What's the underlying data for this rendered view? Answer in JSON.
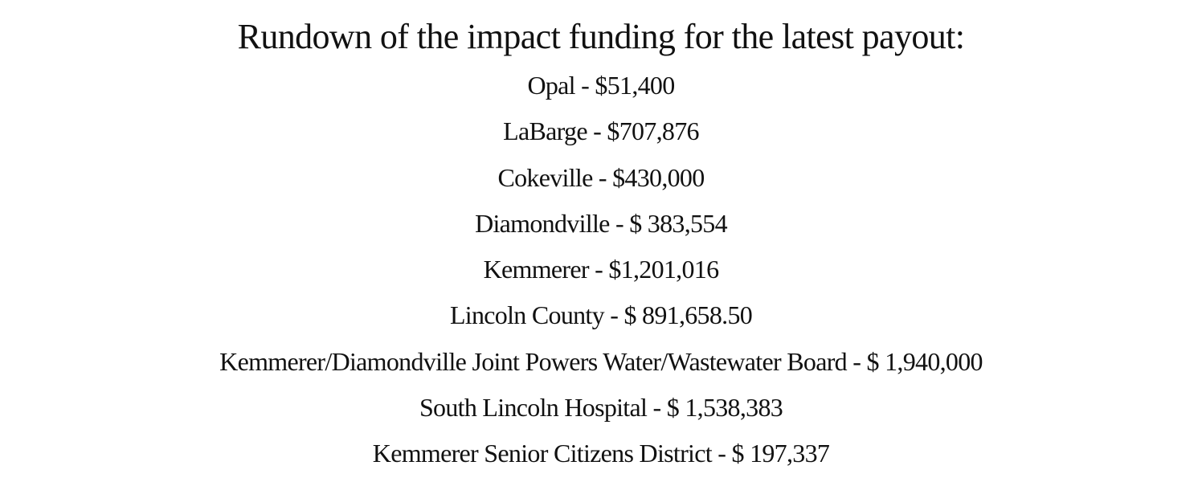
{
  "title": "Rundown of the impact funding for the latest payout:",
  "items": [
    "Opal - $51,400",
    "LaBarge - $707,876",
    "Cokeville - $430,000",
    "Diamondville - $ 383,554",
    "Kemmerer - $1,201,016",
    "Lincoln County - $ 891,658.50",
    "Kemmerer/Diamondville Joint Powers Water/Wastewater Board - $ 1,940,000",
    "South Lincoln Hospital - $ 1,538,383",
    "Kemmerer Senior Citizens District - $ 197,337"
  ]
}
